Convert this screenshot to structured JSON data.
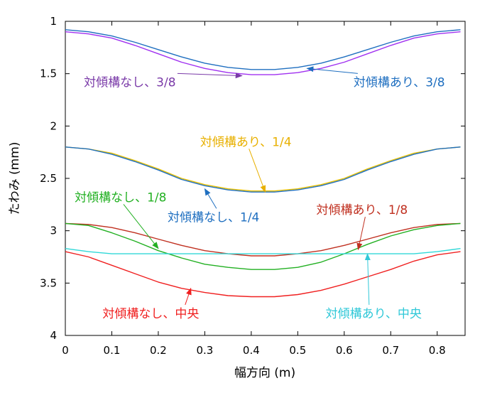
{
  "chart_data": {
    "type": "line",
    "title": "",
    "xlabel": "幅方向 (m)",
    "ylabel": "たわみ (mm)",
    "xlim": [
      0,
      0.86
    ],
    "ylim": [
      1,
      4
    ],
    "y_reversed": true,
    "x_ticks": [
      0,
      0.1,
      0.2,
      0.3,
      0.4,
      0.5,
      0.6,
      0.7,
      0.8
    ],
    "x_tick_labels": [
      "0",
      "0.1",
      "0.2",
      "0.3",
      "0.4",
      "0.5",
      "0.6",
      "0.7",
      "0.8"
    ],
    "y_ticks": [
      1,
      1.5,
      2,
      2.5,
      3,
      3.5,
      4
    ],
    "y_tick_labels": [
      "1",
      "1.5",
      "2",
      "2.5",
      "3",
      "3.5",
      "4"
    ],
    "grid": false,
    "legend": "none",
    "series": [
      {
        "name": "対傾構あり、3/8",
        "color": "#1f6fc0",
        "x": [
          0.0,
          0.05,
          0.1,
          0.15,
          0.2,
          0.25,
          0.3,
          0.35,
          0.4,
          0.43,
          0.45,
          0.5,
          0.55,
          0.6,
          0.65,
          0.7,
          0.75,
          0.8,
          0.85
        ],
        "y": [
          1.08,
          1.1,
          1.14,
          1.2,
          1.27,
          1.34,
          1.4,
          1.44,
          1.46,
          1.46,
          1.46,
          1.44,
          1.4,
          1.34,
          1.27,
          1.2,
          1.14,
          1.1,
          1.08
        ]
      },
      {
        "name": "対傾構なし、3/8",
        "color": "#a030f0",
        "x": [
          0.0,
          0.05,
          0.1,
          0.15,
          0.2,
          0.25,
          0.3,
          0.35,
          0.4,
          0.43,
          0.45,
          0.5,
          0.55,
          0.6,
          0.65,
          0.7,
          0.75,
          0.8,
          0.85
        ],
        "y": [
          1.1,
          1.12,
          1.16,
          1.23,
          1.31,
          1.39,
          1.45,
          1.49,
          1.51,
          1.51,
          1.51,
          1.49,
          1.45,
          1.39,
          1.31,
          1.23,
          1.16,
          1.12,
          1.1
        ]
      },
      {
        "name": "対傾構あり、1/4",
        "color": "#e8c000",
        "x": [
          0.0,
          0.05,
          0.1,
          0.15,
          0.2,
          0.25,
          0.3,
          0.35,
          0.4,
          0.43,
          0.45,
          0.5,
          0.55,
          0.6,
          0.65,
          0.7,
          0.75,
          0.8,
          0.85
        ],
        "y": [
          2.2,
          2.22,
          2.26,
          2.33,
          2.41,
          2.5,
          2.56,
          2.6,
          2.62,
          2.62,
          2.62,
          2.6,
          2.56,
          2.5,
          2.41,
          2.33,
          2.26,
          2.22,
          2.2
        ]
      },
      {
        "name": "対傾構なし、1/4",
        "color": "#1f6fc0",
        "x": [
          0.0,
          0.05,
          0.1,
          0.15,
          0.2,
          0.25,
          0.3,
          0.35,
          0.4,
          0.43,
          0.45,
          0.5,
          0.55,
          0.6,
          0.65,
          0.7,
          0.75,
          0.8,
          0.85
        ],
        "y": [
          2.2,
          2.22,
          2.27,
          2.34,
          2.42,
          2.51,
          2.57,
          2.61,
          2.63,
          2.63,
          2.63,
          2.61,
          2.57,
          2.51,
          2.42,
          2.34,
          2.27,
          2.22,
          2.2
        ]
      },
      {
        "name": "対傾構あり、1/8",
        "color": "#c03020",
        "x": [
          0.0,
          0.05,
          0.1,
          0.15,
          0.2,
          0.25,
          0.3,
          0.35,
          0.4,
          0.43,
          0.45,
          0.5,
          0.55,
          0.6,
          0.65,
          0.7,
          0.75,
          0.8,
          0.85
        ],
        "y": [
          2.93,
          2.94,
          2.97,
          3.02,
          3.08,
          3.14,
          3.19,
          3.22,
          3.24,
          3.24,
          3.24,
          3.22,
          3.19,
          3.14,
          3.08,
          3.02,
          2.97,
          2.94,
          2.93
        ]
      },
      {
        "name": "対傾構なし、1/8",
        "color": "#22b022",
        "x": [
          0.0,
          0.05,
          0.1,
          0.15,
          0.2,
          0.25,
          0.3,
          0.35,
          0.4,
          0.43,
          0.45,
          0.5,
          0.55,
          0.6,
          0.65,
          0.7,
          0.75,
          0.8,
          0.85
        ],
        "y": [
          2.93,
          2.95,
          3.02,
          3.1,
          3.19,
          3.26,
          3.32,
          3.35,
          3.37,
          3.37,
          3.37,
          3.35,
          3.3,
          3.22,
          3.13,
          3.05,
          2.99,
          2.95,
          2.93
        ]
      },
      {
        "name": "対傾構あり、中央",
        "color": "#30d8d8",
        "x": [
          0.0,
          0.05,
          0.1,
          0.15,
          0.2,
          0.25,
          0.3,
          0.35,
          0.4,
          0.43,
          0.45,
          0.5,
          0.55,
          0.6,
          0.65,
          0.7,
          0.75,
          0.8,
          0.85
        ],
        "y": [
          3.17,
          3.2,
          3.22,
          3.22,
          3.22,
          3.22,
          3.22,
          3.22,
          3.22,
          3.22,
          3.22,
          3.22,
          3.22,
          3.22,
          3.22,
          3.22,
          3.22,
          3.2,
          3.17
        ]
      },
      {
        "name": "対傾構なし、中央",
        "color": "#f02020",
        "x": [
          0.0,
          0.05,
          0.1,
          0.15,
          0.2,
          0.25,
          0.3,
          0.35,
          0.4,
          0.43,
          0.45,
          0.5,
          0.55,
          0.6,
          0.65,
          0.7,
          0.75,
          0.8,
          0.85
        ],
        "y": [
          3.2,
          3.25,
          3.33,
          3.41,
          3.49,
          3.55,
          3.59,
          3.62,
          3.63,
          3.63,
          3.63,
          3.61,
          3.57,
          3.51,
          3.44,
          3.37,
          3.29,
          3.23,
          3.2
        ]
      }
    ],
    "annotations": [
      {
        "text": "対傾構なし、3/8",
        "color": "#7a3aa8",
        "tx": 0.04,
        "ty": 1.62,
        "ax": 0.38,
        "ay": 1.52,
        "anchor": "start"
      },
      {
        "text": "対傾構あり、3/8",
        "color": "#1f6fc0",
        "tx": 0.62,
        "ty": 1.62,
        "ax": 0.52,
        "ay": 1.45,
        "anchor": "start"
      },
      {
        "text": "対傾構あり、1/4",
        "color": "#e8b000",
        "tx": 0.29,
        "ty": 2.19,
        "ax": 0.43,
        "ay": 2.63,
        "anchor": "start"
      },
      {
        "text": "対傾構なし、1/8",
        "color": "#22b022",
        "tx": 0.02,
        "ty": 2.72,
        "ax": 0.2,
        "ay": 3.17,
        "anchor": "start"
      },
      {
        "text": "対傾構なし、1/4",
        "color": "#1f6fc0",
        "tx": 0.22,
        "ty": 2.91,
        "ax": 0.3,
        "ay": 2.6,
        "anchor": "start"
      },
      {
        "text": "対傾構あり、1/8",
        "color": "#c03020",
        "tx": 0.54,
        "ty": 2.84,
        "ax": 0.63,
        "ay": 3.18,
        "anchor": "start"
      },
      {
        "text": "対傾構あり、中央",
        "color": "#30c8d8",
        "tx": 0.56,
        "ty": 3.83,
        "ax": 0.65,
        "ay": 3.22,
        "anchor": "start"
      },
      {
        "text": "対傾構なし、中央",
        "color": "#f02020",
        "tx": 0.08,
        "ty": 3.83,
        "ax": 0.27,
        "ay": 3.55,
        "anchor": "start"
      }
    ]
  }
}
